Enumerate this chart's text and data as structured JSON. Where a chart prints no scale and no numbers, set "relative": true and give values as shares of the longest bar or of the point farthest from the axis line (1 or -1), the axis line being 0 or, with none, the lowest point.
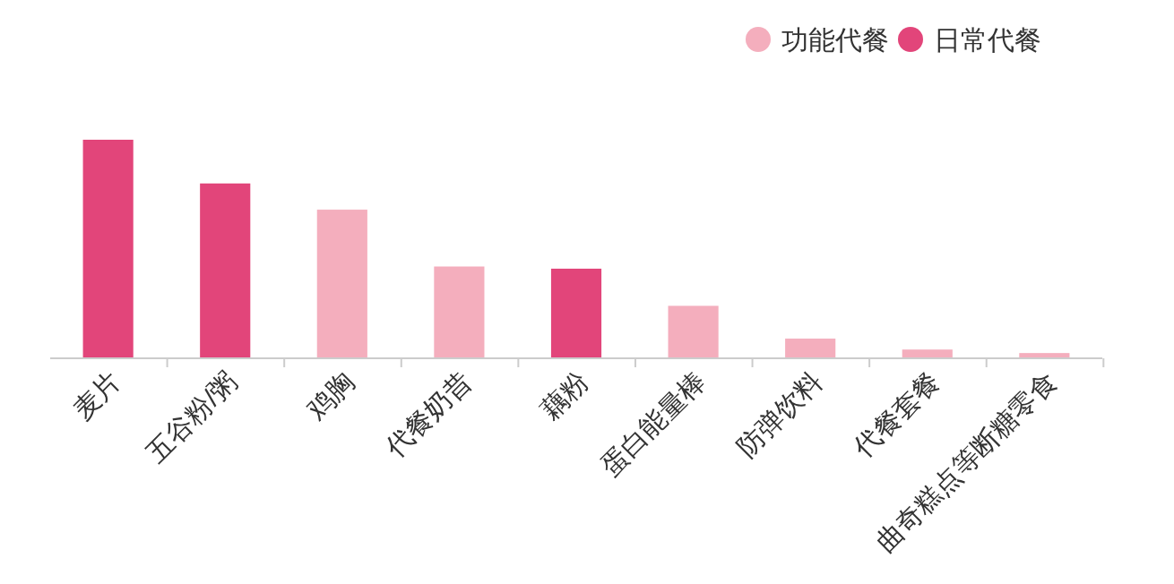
{
  "chart_data": {
    "type": "bar",
    "relative": true,
    "stacked": true,
    "legend": "top right",
    "categories": [
      "麦片",
      "五谷粉/粥",
      "鸡胸",
      "代餐奶昔",
      "藕粉",
      "蛋白能量棒",
      "防弹饮料",
      "代餐套餐",
      "曲奇糕点等断糖零食"
    ],
    "series": [
      {
        "name": "功能代餐",
        "color": "#f4aebd",
        "values": [
          null,
          null,
          0.68,
          0.42,
          null,
          0.24,
          0.09,
          0.04,
          0.024
        ]
      },
      {
        "name": "日常代餐",
        "color": "#e2457a",
        "values": [
          1,
          0.8,
          null,
          null,
          0.41,
          null,
          null,
          null,
          null
        ]
      }
    ]
  }
}
